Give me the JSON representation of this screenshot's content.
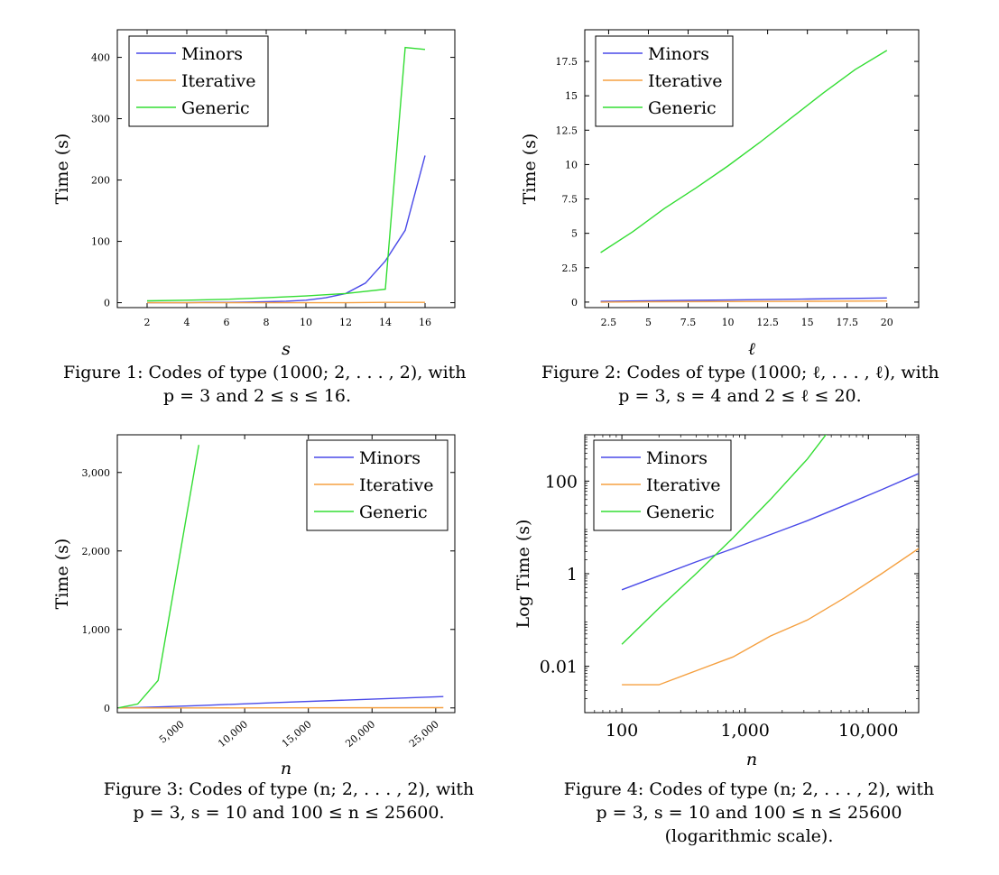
{
  "chart_data": [
    {
      "type": "line",
      "title": "",
      "xlabel": "s",
      "ylabel": "Time (s)",
      "xlim": [
        0.5,
        17.5
      ],
      "ylim": [
        -8,
        445
      ],
      "xticks": [
        2,
        4,
        6,
        8,
        10,
        12,
        14,
        16
      ],
      "xtick_labels": [
        "2",
        "4",
        "6",
        "8",
        "10",
        "12",
        "14",
        "16"
      ],
      "yticks": [
        0,
        100,
        200,
        300,
        400
      ],
      "ytick_labels": [
        "0",
        "100",
        "200",
        "300",
        "400"
      ],
      "xscale": "linear",
      "yscale": "linear",
      "legend": "top-left",
      "series": [
        {
          "name": "Minors",
          "color": "#4a4ae8",
          "x": [
            2,
            3,
            4,
            5,
            6,
            7,
            8,
            9,
            10,
            11,
            12,
            13,
            14,
            15,
            16
          ],
          "y": [
            0,
            0,
            0,
            0.5,
            0.5,
            1,
            1.5,
            2.5,
            4,
            8,
            15,
            32,
            68,
            118,
            240
          ]
        },
        {
          "name": "Iterative",
          "color": "#f5a040",
          "x": [
            2,
            4,
            6,
            8,
            10,
            12,
            14,
            16
          ],
          "y": [
            0,
            0,
            0,
            0,
            0,
            0,
            0.5,
            0.5
          ]
        },
        {
          "name": "Generic",
          "color": "#33dd33",
          "x": [
            2,
            4,
            6,
            8,
            10,
            12,
            14,
            15,
            16
          ],
          "y": [
            3,
            4,
            5.5,
            8,
            11,
            15,
            22,
            416,
            413
          ]
        }
      ]
    },
    {
      "type": "line",
      "title": "",
      "xlabel": "ℓ",
      "ylabel": "Time (s)",
      "xlim": [
        1,
        22
      ],
      "ylim": [
        -0.4,
        19.8
      ],
      "xticks": [
        2.5,
        5,
        7.5,
        10,
        12.5,
        15,
        17.5,
        20
      ],
      "xtick_labels": [
        "2.5",
        "5",
        "7.5",
        "10",
        "12.5",
        "15",
        "17.5",
        "20"
      ],
      "yticks": [
        0,
        2.5,
        5,
        7.5,
        10,
        12.5,
        15,
        17.5
      ],
      "ytick_labels": [
        "0",
        "2.5",
        "5",
        "7.5",
        "10",
        "12.5",
        "15",
        "17.5"
      ],
      "xscale": "linear",
      "yscale": "linear",
      "legend": "top-left",
      "series": [
        {
          "name": "Minors",
          "color": "#4a4ae8",
          "x": [
            2,
            5,
            10,
            15,
            20
          ],
          "y": [
            0.05,
            0.1,
            0.15,
            0.22,
            0.3
          ]
        },
        {
          "name": "Iterative",
          "color": "#f5a040",
          "x": [
            2,
            5,
            10,
            15,
            20
          ],
          "y": [
            0,
            0.02,
            0.04,
            0.06,
            0.08
          ]
        },
        {
          "name": "Generic",
          "color": "#33dd33",
          "x": [
            2,
            4,
            6,
            8,
            10,
            12,
            14,
            16,
            18,
            20
          ],
          "y": [
            3.6,
            5.1,
            6.8,
            8.3,
            9.9,
            11.6,
            13.4,
            15.2,
            16.9,
            18.3
          ]
        }
      ]
    },
    {
      "type": "line",
      "title": "",
      "xlabel": "n",
      "ylabel": "Time (s)",
      "xlim": [
        0,
        26500
      ],
      "ylim": [
        -60,
        3480
      ],
      "xticks": [
        5000,
        10000,
        15000,
        20000,
        25000
      ],
      "xtick_labels": [
        "5,000",
        "10,000",
        "15,000",
        "20,000",
        "25,000"
      ],
      "yticks": [
        0,
        1000,
        2000,
        3000
      ],
      "ytick_labels": [
        "0",
        "1,000",
        "2,000",
        "3,000"
      ],
      "xscale": "linear",
      "yscale": "linear",
      "legend": "top-right",
      "series": [
        {
          "name": "Minors",
          "color": "#4a4ae8",
          "x": [
            100,
            1600,
            3200,
            6400,
            12800,
            25600
          ],
          "y": [
            0.5,
            5,
            12,
            30,
            70,
            145
          ]
        },
        {
          "name": "Iterative",
          "color": "#f5a040",
          "x": [
            100,
            6400,
            12800,
            25600
          ],
          "y": [
            0,
            0.3,
            1,
            3.5
          ]
        },
        {
          "name": "Generic",
          "color": "#33dd33",
          "x": [
            100,
            1600,
            3200,
            6400
          ],
          "y": [
            0.5,
            50,
            350,
            3350
          ]
        }
      ]
    },
    {
      "type": "line",
      "title": "",
      "xlabel": "n",
      "ylabel": "Log Time (s)",
      "xlim": [
        50,
        25600
      ],
      "ylim": [
        0.001,
        1000
      ],
      "xticks": [
        100,
        1000,
        10000
      ],
      "xtick_labels": [
        "100",
        "1,000",
        "10,000"
      ],
      "yticks": [
        0.01,
        1,
        100
      ],
      "ytick_labels": [
        "0.01",
        "1",
        "100"
      ],
      "xscale": "log",
      "yscale": "log",
      "legend": "top-left",
      "series": [
        {
          "name": "Minors",
          "color": "#4a4ae8",
          "x": [
            100,
            200,
            400,
            800,
            1600,
            3200,
            6400,
            12800,
            25600
          ],
          "y": [
            0.45,
            0.9,
            1.8,
            3.5,
            7,
            14,
            30,
            65,
            145
          ]
        },
        {
          "name": "Iterative",
          "color": "#f5a040",
          "x": [
            100,
            200,
            400,
            800,
            1600,
            3200,
            6400,
            12800,
            25600
          ],
          "y": [
            0.004,
            0.004,
            0.008,
            0.016,
            0.045,
            0.1,
            0.3,
            1,
            3.5
          ]
        },
        {
          "name": "Generic",
          "color": "#33dd33",
          "x": [
            100,
            200,
            400,
            800,
            1600,
            3200,
            6400
          ],
          "y": [
            0.03,
            0.18,
            1,
            6,
            40,
            300,
            3350
          ]
        }
      ]
    }
  ],
  "captions": [
    {
      "line1": "Figure 1:  Codes of type (1000; 2, . . . , 2), with",
      "line2": "p = 3 and 2 ≤ s ≤ 16."
    },
    {
      "line1": "Figure 2:  Codes of type (1000; ℓ, . . . , ℓ), with",
      "line2": "p = 3, s = 4 and 2 ≤ ℓ ≤ 20."
    },
    {
      "line1": "Figure 3:  Codes of type (n; 2, . . . , 2), with",
      "line2": "p = 3, s = 10 and 100 ≤ n ≤ 25600."
    },
    {
      "line1": "Figure 4:  Codes of type (n; 2, . . . , 2), with",
      "line2": "p = 3, s = 10 and 100 ≤ n ≤ 25600",
      "line3": "(logarithmic scale)."
    }
  ]
}
